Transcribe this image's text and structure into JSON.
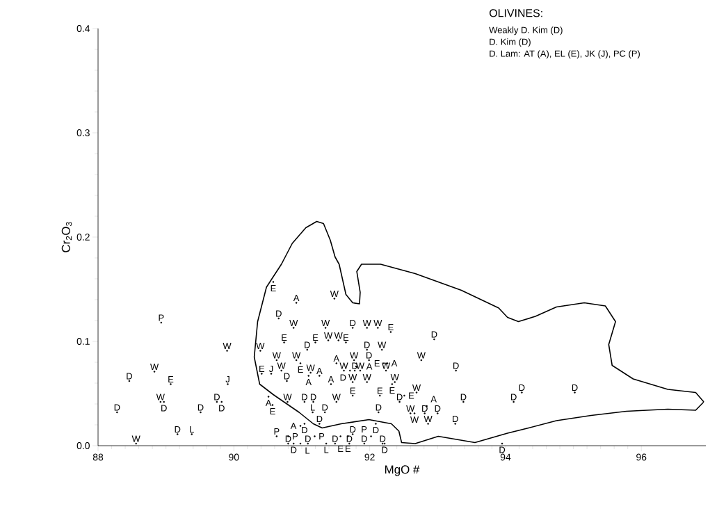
{
  "chart_data": {
    "type": "scatter",
    "xlabel": "MgO  #",
    "ylabel": "Cr$_{2}$O$_{3}$",
    "xlim": [
      88,
      96.95
    ],
    "ylim": [
      0,
      0.4
    ],
    "xticks": [
      88,
      90,
      92,
      94,
      96
    ],
    "yticks": [
      {
        "value": 0,
        "label": "0.0"
      },
      {
        "value": 0.1,
        "label": "0.1"
      },
      {
        "value": 0.2,
        "label": "0.2"
      },
      {
        "value": 0.3,
        "label": "0.3"
      },
      {
        "value": 0.4,
        "label": "0.4"
      }
    ],
    "annotations": [
      "OLIVINES:",
      "Weakly D. Kim (D)",
      "D. Kim (D)",
      "D.  Lam:  AT (A), EL (E), JK (J), PC (P)"
    ],
    "series": [
      {
        "name": "W",
        "color": "#000000",
        "x": [
          88.56,
          88.83,
          88.92,
          89.9,
          90.39,
          90.63,
          90.88,
          90.7,
          90.92,
          90.79,
          91.13,
          91.48,
          91.35,
          91.39,
          91.54,
          91.51,
          91.77,
          91.62,
          91.86,
          91.75,
          91.96,
          92.12,
          91.96,
          92.18,
          92.24,
          92.37,
          92.69,
          92.76,
          92.86,
          92.6,
          92.66
        ],
        "values": [
          0.002,
          0.071,
          0.042,
          0.091,
          0.091,
          0.082,
          0.113,
          0.072,
          0.082,
          0.042,
          0.07,
          0.141,
          0.113,
          0.101,
          0.101,
          0.042,
          0.082,
          0.072,
          0.072,
          0.061,
          0.113,
          0.113,
          0.061,
          0.092,
          0.072,
          0.061,
          0.051,
          0.082,
          0.021,
          0.031,
          0.031
        ]
      },
      {
        "name": "D",
        "color": "#000000",
        "x": [
          88.28,
          88.46,
          88.97,
          89.75,
          89.82,
          89.51,
          89.17,
          90.66,
          90.78,
          91.08,
          91.04,
          91.17,
          91.34,
          91.26,
          91.04,
          91.75,
          91.96,
          91.99,
          91.71,
          91.78,
          92.13,
          92.09,
          91.75,
          92.44,
          92.81,
          93.0,
          92.95,
          93.27,
          93.38,
          93.26,
          94.12,
          94.24,
          95.02,
          93.95,
          90.8,
          90.88,
          91.09,
          91.49,
          91.7,
          91.92,
          92.19,
          92.22
        ],
        "values": [
          0.032,
          0.062,
          0.042,
          0.042,
          0.042,
          0.032,
          0.011,
          0.122,
          0.062,
          0.092,
          0.042,
          0.042,
          0.032,
          0.021,
          0.021,
          0.113,
          0.092,
          0.082,
          0.072,
          0.072,
          0.032,
          0.021,
          0.011,
          0.042,
          0.031,
          0.031,
          0.102,
          0.072,
          0.042,
          0.021,
          0.042,
          0.051,
          0.051,
          0.002,
          0.002,
          0.002,
          0.002,
          0.002,
          0.002,
          0.002,
          0.002,
          0.002
        ]
      },
      {
        "name": "E",
        "color": "#000000",
        "x": [
          89.07,
          90.41,
          90.57,
          90.74,
          91.2,
          91.65,
          92.31,
          90.98,
          91.75,
          92.15,
          92.33,
          92.51,
          91.57,
          91.68,
          92.21,
          90.58
        ],
        "values": [
          0.059,
          0.069,
          0.039,
          0.099,
          0.099,
          0.099,
          0.109,
          0.079,
          0.048,
          0.048,
          0.059,
          0.048,
          0.009,
          0.009,
          0.079,
          0.157
        ]
      },
      {
        "name": "A",
        "color": "#000000",
        "x": [
          90.92,
          91.26,
          91.43,
          91.51,
          91.8,
          92.26,
          90.51,
          90.98,
          92.84,
          91.1
        ],
        "values": [
          0.137,
          0.067,
          0.059,
          0.079,
          0.076,
          0.079,
          0.047,
          0.019,
          0.038,
          0.067
        ]
      },
      {
        "name": "J",
        "color": "#000000",
        "x": [
          89.91,
          90.55
        ],
        "values": [
          0.059,
          0.069
        ]
      },
      {
        "name": "P",
        "color": "#000000",
        "x": [
          88.93,
          90.63,
          90.8,
          91.19,
          92.02
        ],
        "values": [
          0.118,
          0.009,
          0.009,
          0.009,
          0.009
        ]
      },
      {
        "name": "L",
        "color": "#000000",
        "x": [
          89.38,
          91.16,
          90.98,
          91.36
        ],
        "values": [
          0.011,
          0.032,
          0.002,
          0.002
        ]
      },
      {
        "type": "line",
        "color": "#000000",
        "x": [
          90.58,
          90.38,
          90.3,
          90.35,
          90.48,
          90.7,
          90.86,
          91.06,
          91.22,
          91.32,
          91.42,
          91.49,
          91.55,
          91.65,
          91.75,
          91.85,
          91.86,
          91.81,
          91.88,
          92.16,
          92.67,
          93.35,
          93.9,
          94.03,
          94.19,
          94.44,
          94.75,
          95.16,
          95.47,
          95.62,
          95.52,
          95.57,
          95.88,
          96.39,
          96.8,
          96.92,
          null,
          96.92,
          96.8,
          96.39,
          95.78,
          95.26,
          94.75,
          94.34,
          94.03,
          93.55,
          93.01,
          92.67,
          92.47,
          92.43,
          92.32,
          91.99,
          91.58,
          91.3,
          91.17,
          90.96,
          90.58
        ],
        "values": [
          0.049,
          0.059,
          0.085,
          0.119,
          0.152,
          0.174,
          0.194,
          0.209,
          0.215,
          0.213,
          0.197,
          0.181,
          0.174,
          0.145,
          0.137,
          0.136,
          0.147,
          0.167,
          0.174,
          0.174,
          0.165,
          0.149,
          0.132,
          0.123,
          0.119,
          0.124,
          0.133,
          0.137,
          0.134,
          0.119,
          0.097,
          0.077,
          0.064,
          0.054,
          0.051,
          0.042,
          null,
          0.042,
          0.034,
          0.035,
          0.033,
          0.029,
          0.024,
          0.017,
          0.012,
          0.003,
          0.009,
          0.002,
          0.003,
          0.014,
          0.021,
          0.025,
          0.021,
          0.017,
          0.021,
          0.032,
          0.049
        ]
      }
    ]
  }
}
